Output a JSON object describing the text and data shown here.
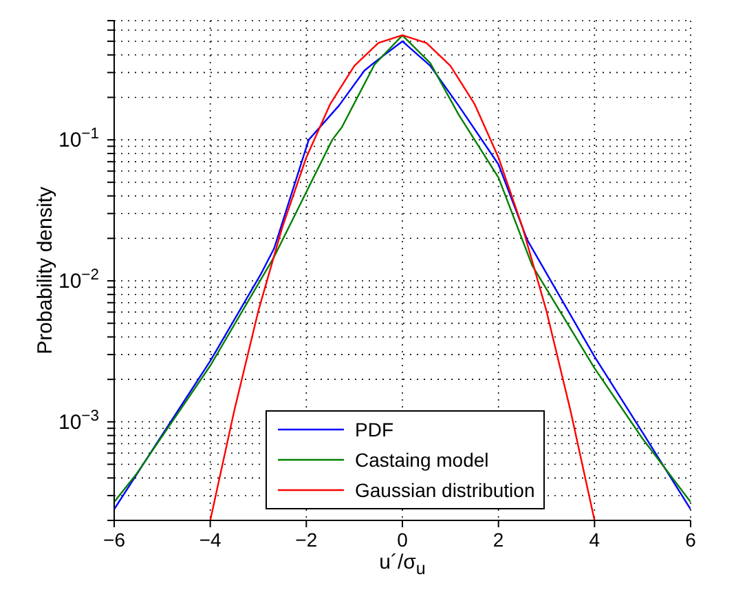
{
  "chart_data": {
    "type": "line",
    "xlabel": "u´/σ$_{u}$",
    "ylabel": "Probability density",
    "log": "y",
    "grid": true,
    "legend": "bottom",
    "marker": "none",
    "line_style": "solid",
    "xlim": [
      -6,
      6
    ],
    "xticks": [
      {
        "value": -6,
        "label": "−6"
      },
      {
        "value": -4,
        "label": "−4"
      },
      {
        "value": -2,
        "label": "−2"
      },
      0,
      2,
      4,
      6
    ],
    "ylim": [
      0.0002,
      0.7
    ],
    "yticks": [
      {
        "value": 0.0002,
        "label": null
      },
      {
        "value": 0.0003,
        "label": null
      },
      {
        "value": 0.0004,
        "label": null
      },
      {
        "value": 0.0005,
        "label": null
      },
      {
        "value": 0.0006,
        "label": null
      },
      {
        "value": 0.0007,
        "label": null
      },
      {
        "value": 0.0008,
        "label": null
      },
      {
        "value": 0.0009,
        "label": null
      },
      {
        "value": 0.001,
        "label": "10$^{−3}$"
      },
      {
        "value": 0.002,
        "label": null
      },
      {
        "value": 0.003,
        "label": null
      },
      {
        "value": 0.004,
        "label": null
      },
      {
        "value": 0.005,
        "label": null
      },
      {
        "value": 0.006,
        "label": null
      },
      {
        "value": 0.007,
        "label": null
      },
      {
        "value": 0.008,
        "label": null
      },
      {
        "value": 0.009,
        "label": null
      },
      {
        "value": 0.01,
        "label": "10$^{−2}$"
      },
      {
        "value": 0.02,
        "label": null
      },
      {
        "value": 0.03,
        "label": null
      },
      {
        "value": 0.04,
        "label": null
      },
      {
        "value": 0.05,
        "label": null
      },
      {
        "value": 0.06,
        "label": null
      },
      {
        "value": 0.07,
        "label": null
      },
      {
        "value": 0.08,
        "label": null
      },
      {
        "value": 0.09,
        "label": null
      },
      {
        "value": 0.1,
        "label": "10$^{−1}$"
      },
      {
        "value": 0.2,
        "label": null
      },
      {
        "value": 0.3,
        "label": null
      },
      {
        "value": 0.4,
        "label": null
      },
      {
        "value": 0.5,
        "label": null
      },
      {
        "value": 0.6,
        "label": null
      },
      {
        "value": 0.7,
        "label": null
      }
    ],
    "series": [
      {
        "name": "PDF",
        "color": "#0000ff",
        "x": [
          -6,
          -5,
          -4,
          -2.95,
          -2.67,
          -1.95,
          -1.32,
          -0.79,
          -0.58,
          0,
          0.58,
          1.17,
          2,
          2.6,
          4,
          5,
          6
        ],
        "values": [
          0.00024,
          0.00081,
          0.0027,
          0.0111,
          0.017,
          0.1,
          0.175,
          0.31,
          0.354,
          0.5,
          0.335,
          0.175,
          0.067,
          0.0195,
          0.0029,
          0.00084,
          0.00024
        ]
      },
      {
        "name": "Castaing model",
        "color": "#008000",
        "x": [
          -6,
          -5.53,
          -4,
          -2.67,
          -1.46,
          -1.26,
          -0.58,
          0,
          0.58,
          1.17,
          2,
          2.7,
          4,
          5,
          6
        ],
        "values": [
          0.00027,
          0.00043,
          0.0025,
          0.0148,
          0.1,
          0.123,
          0.342,
          0.55,
          0.35,
          0.151,
          0.054,
          0.0129,
          0.0024,
          0.00076,
          0.00027
        ]
      },
      {
        "name": "Gaussian distribution",
        "color": "#ff0000",
        "x": [
          -4,
          -3.5,
          -3,
          -2.5,
          -2,
          -1.5,
          -1,
          -0.5,
          0,
          0.5,
          1,
          1.5,
          2,
          2.5,
          3,
          3.5,
          4
        ],
        "values": [
          0.0002,
          0.0012,
          0.0061,
          0.024,
          0.075,
          0.18,
          0.335,
          0.487,
          0.552,
          0.487,
          0.335,
          0.18,
          0.075,
          0.024,
          0.0061,
          0.0012,
          0.0002
        ]
      }
    ]
  }
}
